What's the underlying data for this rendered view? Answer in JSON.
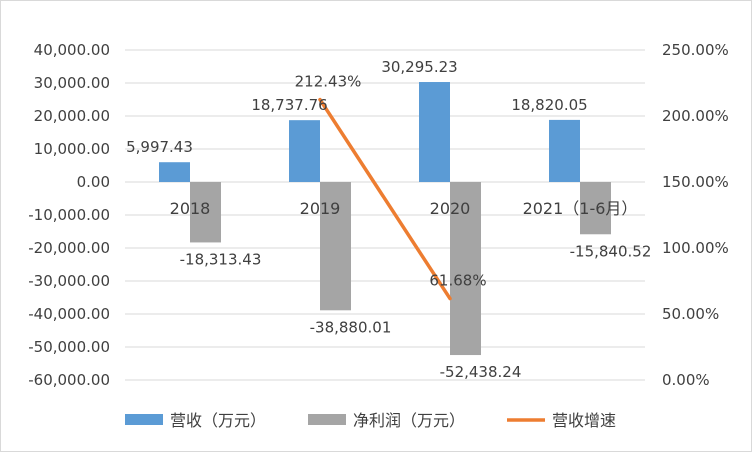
{
  "chart_data": {
    "type": "bar",
    "categories": [
      "2018",
      "2019",
      "2020",
      "2021（1-6月）"
    ],
    "series": [
      {
        "name": "营收（万元）",
        "type": "bar",
        "axis": "left",
        "color": "#5b9bd5",
        "values": [
          5997.43,
          18737.76,
          30295.23,
          18820.05
        ],
        "labels": [
          "5,997.43",
          "18,737.76",
          "30,295.23",
          "18,820.05"
        ]
      },
      {
        "name": "净利润（万元）",
        "type": "bar",
        "axis": "left",
        "color": "#a5a5a5",
        "values": [
          -18313.43,
          -38880.01,
          -52438.24,
          -15840.52
        ],
        "labels": [
          "-18,313.43",
          "-38,880.01",
          "-52,438.24",
          "-15,840.52"
        ]
      },
      {
        "name": "营收增速",
        "type": "line",
        "axis": "right",
        "color": "#ed7d31",
        "values": [
          null,
          212.43,
          61.68,
          null
        ],
        "labels": [
          "",
          "212.43%",
          "61.68%",
          ""
        ]
      }
    ],
    "y_left": {
      "lim": [
        -60000,
        40000
      ],
      "ticks": [
        40000,
        30000,
        20000,
        10000,
        0,
        -10000,
        -20000,
        -30000,
        -40000,
        -50000,
        -60000
      ],
      "tick_labels": [
        "40,000.00",
        "30,000.00",
        "20,000.00",
        "10,000.00",
        "0.00",
        "-10,000.00",
        "-20,000.00",
        "-30,000.00",
        "-40,000.00",
        "-50,000.00",
        "-60,000.00"
      ]
    },
    "y_right": {
      "lim": [
        0,
        250
      ],
      "ticks": [
        250,
        200,
        150,
        100,
        50,
        0
      ],
      "tick_labels": [
        "250.00%",
        "200.00%",
        "150.00%",
        "100.00%",
        "50.00%",
        "0.00%"
      ]
    },
    "grid": true,
    "legend": "bottom"
  }
}
